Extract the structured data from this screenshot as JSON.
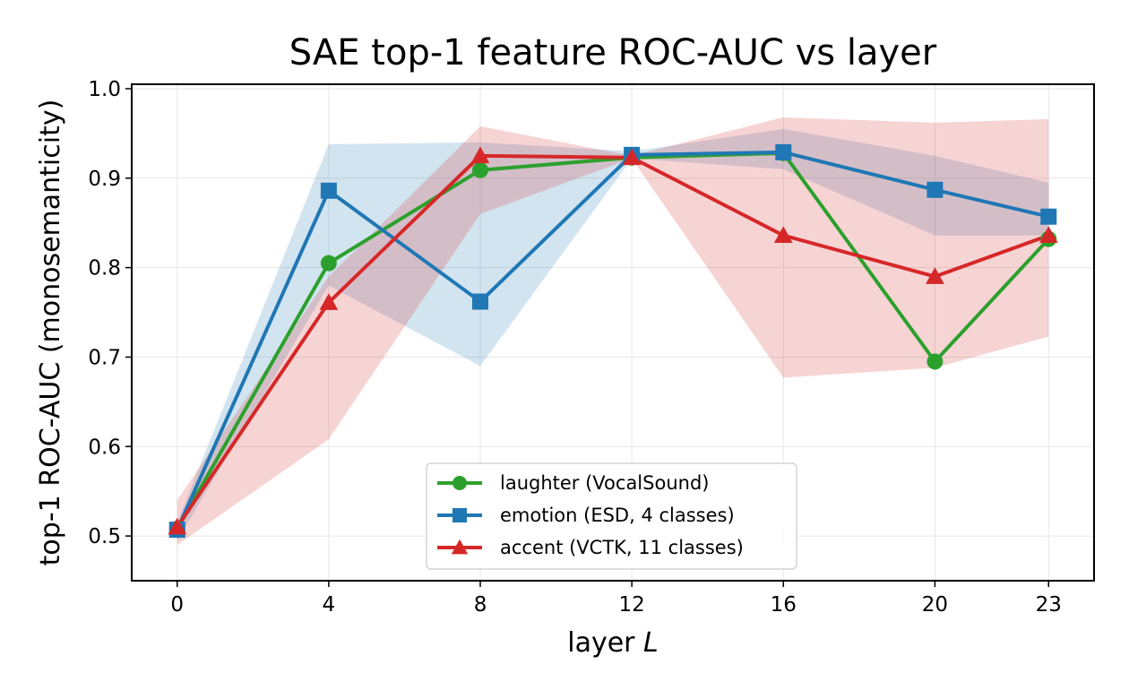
{
  "chart_data": {
    "type": "line",
    "title": "SAE top-1 feature ROC-AUC vs layer",
    "xlabel_main": "layer ",
    "xlabel_var": "L",
    "ylabel": "top-1 ROC-AUC (monosemanticity)",
    "x": [
      0,
      4,
      8,
      12,
      16,
      20,
      23
    ],
    "xticks": [
      "0",
      "4",
      "8",
      "12",
      "16",
      "20",
      "23"
    ],
    "yticks": [
      "0.5",
      "0.6",
      "0.7",
      "0.8",
      "0.9",
      "1.0"
    ],
    "ytick_values": [
      0.5,
      0.6,
      0.7,
      0.8,
      0.9,
      1.0
    ],
    "xlim": [
      -1.2,
      24.2
    ],
    "ylim": [
      0.45,
      1.005
    ],
    "grid": true,
    "legend_position": "bottom-center",
    "series": [
      {
        "name": "laughter (VocalSound)",
        "color": "#2ca02c",
        "marker": "circle",
        "values": [
          0.508,
          0.805,
          0.909,
          0.923,
          0.928,
          0.695,
          0.832
        ],
        "band_low": [
          0.508,
          0.805,
          0.909,
          0.923,
          0.928,
          0.695,
          0.832
        ],
        "band_high": [
          0.508,
          0.805,
          0.909,
          0.923,
          0.928,
          0.695,
          0.832
        ]
      },
      {
        "name": "emotion (ESD, 4 classes)",
        "color": "#1f77b4",
        "marker": "square",
        "values": [
          0.507,
          0.886,
          0.762,
          0.926,
          0.929,
          0.887,
          0.857
        ],
        "band_low": [
          0.495,
          0.78,
          0.69,
          0.922,
          0.91,
          0.836,
          0.836
        ],
        "band_high": [
          0.515,
          0.938,
          0.94,
          0.93,
          0.955,
          0.925,
          0.895
        ]
      },
      {
        "name": "accent (VCTK, 11 classes)",
        "color": "#d62728",
        "marker": "triangle",
        "values": [
          0.51,
          0.761,
          0.925,
          0.923,
          0.836,
          0.79,
          0.836
        ],
        "band_low": [
          0.49,
          0.608,
          0.86,
          0.922,
          0.677,
          0.688,
          0.723
        ],
        "band_high": [
          0.54,
          0.79,
          0.958,
          0.925,
          0.968,
          0.962,
          0.966
        ]
      }
    ]
  }
}
